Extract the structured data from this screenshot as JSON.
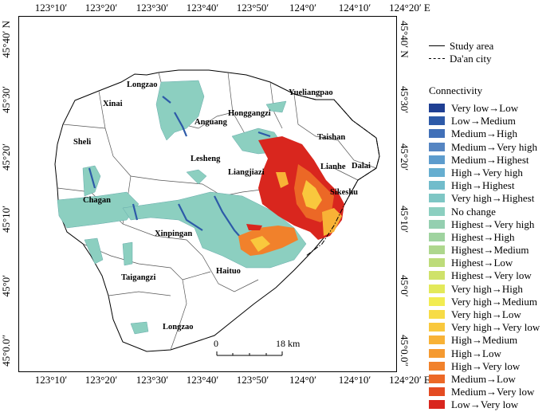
{
  "longitude_labels": [
    "123°10′",
    "123°20′",
    "123°30′",
    "123°40′",
    "123°50′",
    "124°0′",
    "124°10′",
    "124°20′ E"
  ],
  "latitude_labels_left": [
    "45°40′ N",
    "45°30′",
    "45°20′",
    "45°10′",
    "45°0′",
    "45°0.0″"
  ],
  "latitude_labels_right": [
    "45°40′ N",
    "45°30′",
    "45°20′",
    "45°10′",
    "45°0′",
    "45°0.0″"
  ],
  "places": [
    {
      "name": "Longzao"
    },
    {
      "name": "Xinai"
    },
    {
      "name": "Sheli"
    },
    {
      "name": "Honggangzi"
    },
    {
      "name": "Yueliangpao"
    },
    {
      "name": "Anguang"
    },
    {
      "name": "Taishan"
    },
    {
      "name": "Lesheng"
    },
    {
      "name": "Liangjiazi"
    },
    {
      "name": "Lianhe"
    },
    {
      "name": "Dalai"
    },
    {
      "name": "Sikeshu"
    },
    {
      "name": "Chagan"
    },
    {
      "name": "Xinpingan"
    },
    {
      "name": "Haituo"
    },
    {
      "name": "Taigangzi"
    },
    {
      "name": "Longzao"
    }
  ],
  "scale_bar": {
    "start": "0",
    "end": "18 km"
  },
  "boundary_legend": [
    {
      "label": "Study area",
      "style": "solid"
    },
    {
      "label": "Da'an city",
      "style": "dash-dot"
    }
  ],
  "legend_title": "Connectivity",
  "legend_items": [
    {
      "label": "Very low→Low",
      "color": "#1f3f93"
    },
    {
      "label": "Low→Medium",
      "color": "#2d5aa8"
    },
    {
      "label": "Medium→High",
      "color": "#4170b8"
    },
    {
      "label": "Medium→Very high",
      "color": "#5585c2"
    },
    {
      "label": "Medium→Highest",
      "color": "#5d9ccd"
    },
    {
      "label": "High→Very high",
      "color": "#66aed0"
    },
    {
      "label": "High→Highest",
      "color": "#71bccb"
    },
    {
      "label": "Very high→Highest",
      "color": "#7ec6c4"
    },
    {
      "label": "No change",
      "color": "#8ccfc0"
    },
    {
      "label": "Highest→Very high",
      "color": "#94cfb0"
    },
    {
      "label": "Highest→High",
      "color": "#9fd39f"
    },
    {
      "label": "Highest→Medium",
      "color": "#aed78d"
    },
    {
      "label": "Highest→Low",
      "color": "#bddc7a"
    },
    {
      "label": "Highest→Very low",
      "color": "#cfe26a"
    },
    {
      "label": "Very high→High",
      "color": "#e3e95a"
    },
    {
      "label": "Very high→Medium",
      "color": "#f2ec52"
    },
    {
      "label": "Very high→Low",
      "color": "#f7dc46"
    },
    {
      "label": "Very high→Very low",
      "color": "#f9c83d"
    },
    {
      "label": "High→Medium",
      "color": "#f8b236"
    },
    {
      "label": "High→Low",
      "color": "#f59a30"
    },
    {
      "label": "High→Very low",
      "color": "#f1812b"
    },
    {
      "label": "Medium→Low",
      "color": "#ec6826"
    },
    {
      "label": "Medium→Very low",
      "color": "#e44b22"
    },
    {
      "label": "Low→Very low",
      "color": "#d9261e"
    }
  ]
}
